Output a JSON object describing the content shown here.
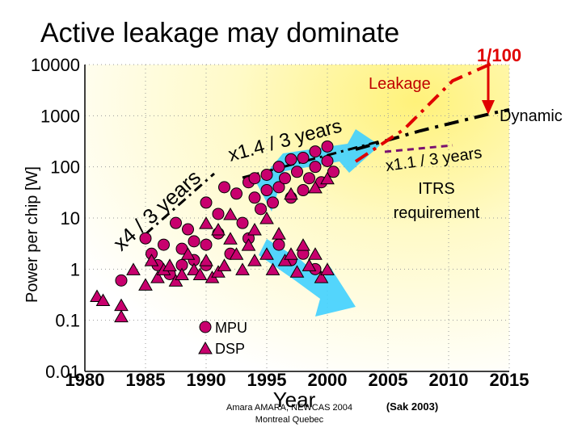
{
  "chart_data": {
    "type": "scatter",
    "title": "Active leakage may dominate",
    "xlabel": "Year",
    "ylabel": "Power per chip [W]",
    "xlim": [
      1980,
      2015
    ],
    "ylim": [
      0.01,
      10000
    ],
    "yscale": "log",
    "x_ticks": [
      "1980",
      "1985",
      "1990",
      "1995",
      "2000",
      "2005",
      "2010",
      "2015"
    ],
    "y_ticks": [
      "10000",
      "1000",
      "100",
      "10",
      "1",
      "0.1",
      "0.01"
    ],
    "series": [
      {
        "name": "MPU",
        "marker": "circle",
        "color": "#c8006e",
        "points": [
          [
            1983,
            0.6
          ],
          [
            1985,
            4
          ],
          [
            1985.5,
            2
          ],
          [
            1986,
            1.2
          ],
          [
            1986.5,
            3
          ],
          [
            1987,
            0.8
          ],
          [
            1987.5,
            8
          ],
          [
            1988,
            2.5
          ],
          [
            1988,
            1.2
          ],
          [
            1988.5,
            6
          ],
          [
            1989,
            1.5
          ],
          [
            1989,
            3.5
          ],
          [
            1990,
            20
          ],
          [
            1990,
            1.2
          ],
          [
            1990,
            3
          ],
          [
            1991,
            12
          ],
          [
            1991,
            5
          ],
          [
            1991.5,
            40
          ],
          [
            1992,
            2
          ],
          [
            1992.5,
            30
          ],
          [
            1993,
            8
          ],
          [
            1993.5,
            50
          ],
          [
            1993.5,
            4
          ],
          [
            1994,
            25
          ],
          [
            1994,
            60
          ],
          [
            1994.5,
            15
          ],
          [
            1995,
            70
          ],
          [
            1995,
            35
          ],
          [
            1995.5,
            20
          ],
          [
            1996,
            100
          ],
          [
            1996,
            40
          ],
          [
            1996.5,
            60
          ],
          [
            1997,
            25
          ],
          [
            1997,
            140
          ],
          [
            1997.5,
            80
          ],
          [
            1998,
            150
          ],
          [
            1998,
            35
          ],
          [
            1998.5,
            60
          ],
          [
            1999,
            200
          ],
          [
            1999,
            100
          ],
          [
            1999.5,
            50
          ],
          [
            2000,
            130
          ],
          [
            2000,
            250
          ],
          [
            2000.5,
            80
          ],
          [
            1996,
            3
          ],
          [
            1997,
            1.5
          ],
          [
            1998,
            2
          ],
          [
            1999,
            1
          ]
        ]
      },
      {
        "name": "DSP",
        "marker": "triangle",
        "color": "#c8006e",
        "points": [
          [
            1981,
            0.3
          ],
          [
            1981.5,
            0.25
          ],
          [
            1983,
            0.2
          ],
          [
            1983,
            0.12
          ],
          [
            1984,
            1
          ],
          [
            1985,
            0.5
          ],
          [
            1985.5,
            1.5
          ],
          [
            1986,
            0.7
          ],
          [
            1986.5,
            1
          ],
          [
            1987,
            1.2
          ],
          [
            1987.5,
            0.6
          ],
          [
            1988,
            0.8
          ],
          [
            1988.5,
            2
          ],
          [
            1989,
            1
          ],
          [
            1989.5,
            0.8
          ],
          [
            1990,
            1.5
          ],
          [
            1990.5,
            0.7
          ],
          [
            1991,
            0.9
          ],
          [
            1991.5,
            1.2
          ],
          [
            1992,
            4
          ],
          [
            1992.5,
            2
          ],
          [
            1993,
            1
          ],
          [
            1993.5,
            3
          ],
          [
            1994,
            1.5
          ],
          [
            1994,
            6
          ],
          [
            1995,
            2
          ],
          [
            1995.5,
            1
          ],
          [
            1996,
            5
          ],
          [
            1996.5,
            1.5
          ],
          [
            1997,
            2
          ],
          [
            1997.5,
            0.9
          ],
          [
            1998,
            3
          ],
          [
            1998.5,
            1.2
          ],
          [
            1999,
            2
          ],
          [
            1999.5,
            0.7
          ],
          [
            2000,
            1
          ],
          [
            1990,
            8
          ],
          [
            1991,
            6
          ],
          [
            1992,
            12
          ],
          [
            1995,
            10
          ],
          [
            1997,
            30
          ],
          [
            1999,
            40
          ],
          [
            2000,
            60
          ]
        ]
      }
    ],
    "lines": [
      {
        "name": "Leakage",
        "color": "#e00000",
        "style": "dash-dot"
      },
      {
        "name": "Dynamic",
        "color": "#000000",
        "style": "dash-dot"
      }
    ]
  },
  "annotations": {
    "leakage": "Leakage",
    "dynamic": "Dynamic",
    "ratio": "1/100",
    "trend_x4": "x4 / 3 years",
    "trend_x14": "x1.4 / 3 years",
    "trend_x11": "x1.1 / 3 years",
    "itrs_line1": "ITRS",
    "itrs_line2": "requirement"
  },
  "legend": {
    "mpu": "MPU",
    "dsp": "DSP"
  },
  "footer": {
    "credit_line1": "Amara AMARA, NEWCAS 2004",
    "credit_line2": "Montreal Quebec",
    "citation": "(Sak 2003)"
  }
}
